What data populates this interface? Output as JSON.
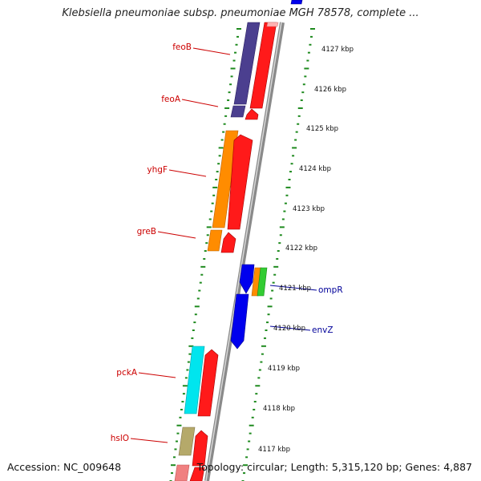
{
  "title": "Klebsiella pneumoniae subsp. pneumoniae MGH 78578, complete ...",
  "footer": {
    "accession": "Accession: NC_009648",
    "info": "Topology: circular; Length: 5,315,120 bp; Genes: 4,887"
  },
  "colors": {
    "backbone": "#8a8a8a",
    "tick": "#1e8a1e",
    "label_left": "#cc0000",
    "label_right": "#000099",
    "red": "#ff1a1a",
    "purple": "#4b3f8f",
    "orange": "#ff8c00",
    "blue": "#0000ee",
    "green": "#33cc33",
    "cyan": "#00e5ee",
    "khaki": "#b5a96a",
    "pink": "#f08080"
  },
  "kbp_labels": [
    "4127 kbp",
    "4126 kbp",
    "4125 kbp",
    "4124 kbp",
    "4123 kbp",
    "4122 kbp",
    "4121 kbp",
    "4120 kbp",
    "4119 kbp",
    "4118 kbp",
    "4117 kbp"
  ],
  "gene_labels_left": [
    "feoB",
    "feoA",
    "yhgF",
    "greB",
    "pckA",
    "hslO"
  ],
  "gene_labels_right": [
    "ompR",
    "envZ"
  ]
}
